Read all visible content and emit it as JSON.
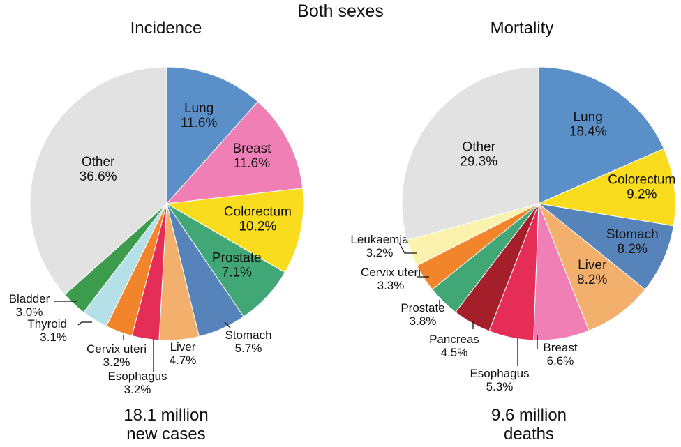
{
  "title": "Both sexes",
  "charts": [
    {
      "title": "Incidence",
      "total_line1": "18.1 million",
      "total_line2": "new cases"
    },
    {
      "title": "Mortality",
      "total_line1": "9.6 million",
      "total_line2": "deaths"
    }
  ],
  "chart_data": [
    {
      "type": "pie",
      "title": "Incidence",
      "slices": [
        {
          "name": "Lung",
          "value": 11.6,
          "label": "11.6%",
          "color": "#5b8fc7"
        },
        {
          "name": "Breast",
          "value": 11.6,
          "label": "11.6%",
          "color": "#ef7fb5"
        },
        {
          "name": "Colorectum",
          "value": 10.2,
          "label": "10.2%",
          "color": "#f9dc1d"
        },
        {
          "name": "Prostate",
          "value": 7.1,
          "label": "7.1%",
          "color": "#41a776"
        },
        {
          "name": "Stomach",
          "value": 5.7,
          "label": "5.7%",
          "color": "#5683ba"
        },
        {
          "name": "Liver",
          "value": 4.7,
          "label": "4.7%",
          "color": "#f3b06d"
        },
        {
          "name": "Esophagus",
          "value": 3.2,
          "label": "3.2%",
          "color": "#e52d57"
        },
        {
          "name": "Cervix uteri",
          "value": 3.2,
          "label": "3.2%",
          "color": "#f2852b"
        },
        {
          "name": "Thyroid",
          "value": 3.1,
          "label": "3.1%",
          "color": "#b6e0e8"
        },
        {
          "name": "Bladder",
          "value": 3.0,
          "label": "3.0%",
          "color": "#3d9b4d"
        },
        {
          "name": "Other",
          "value": 36.6,
          "label": "36.6%",
          "color": "#e2e2e2"
        }
      ]
    },
    {
      "type": "pie",
      "title": "Mortality",
      "slices": [
        {
          "name": "Lung",
          "value": 18.4,
          "label": "18.4%",
          "color": "#5b8fc7"
        },
        {
          "name": "Colorectum",
          "value": 9.2,
          "label": "9.2%",
          "color": "#f9dc1d"
        },
        {
          "name": "Stomach",
          "value": 8.2,
          "label": "8.2%",
          "color": "#5683ba"
        },
        {
          "name": "Liver",
          "value": 8.2,
          "label": "8.2%",
          "color": "#f3b06d"
        },
        {
          "name": "Breast",
          "value": 6.6,
          "label": "6.6%",
          "color": "#ef7fb5"
        },
        {
          "name": "Esophagus",
          "value": 5.3,
          "label": "5.3%",
          "color": "#e52d57"
        },
        {
          "name": "Pancreas",
          "value": 4.5,
          "label": "4.5%",
          "color": "#a51f2a"
        },
        {
          "name": "Prostate",
          "value": 3.8,
          "label": "3.8%",
          "color": "#41a776"
        },
        {
          "name": "Cervix uteri",
          "value": 3.3,
          "label": "3.3%",
          "color": "#f2852b"
        },
        {
          "name": "Leukaemia",
          "value": 3.2,
          "label": "3.2%",
          "color": "#fbf3ad"
        },
        {
          "name": "Other",
          "value": 29.3,
          "label": "29.3%",
          "color": "#e2e2e2"
        }
      ]
    }
  ]
}
